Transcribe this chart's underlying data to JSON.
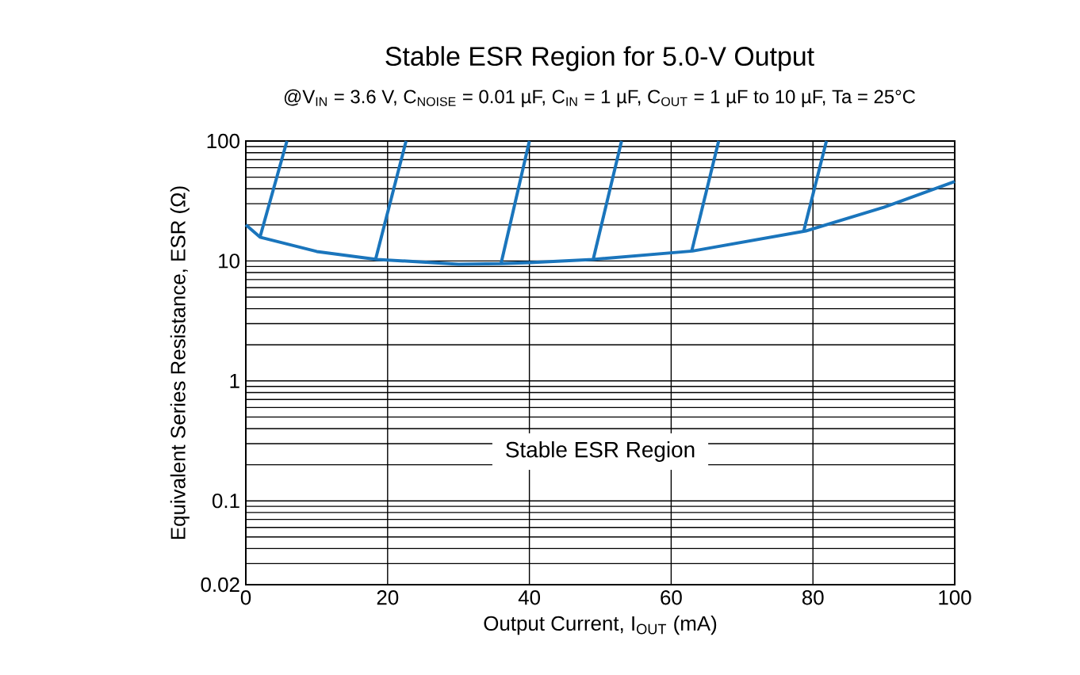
{
  "chart_data": {
    "type": "line",
    "title": "Stable ESR Region for 5.0-V Output",
    "subtitle": "@V$_{IN}$ = 3.6 V, C$_{NOISE}$ = 0.01 µF, C$_{IN}$ = 1 µF, C$_{OUT}$ = 1 µF to 10 µF, Ta  =  25°C",
    "xlabel": "Output Current, I$_{OUT}$ (mA)",
    "ylabel": "Equivalent Series Resistance, ESR (Ω)",
    "xlim": [
      0,
      100
    ],
    "ylim": [
      0.02,
      100
    ],
    "log": "y",
    "grid": true,
    "xticks": [
      0,
      20,
      40,
      60,
      80,
      100
    ],
    "yticks": [
      0.02,
      0.1,
      1,
      10,
      100
    ],
    "annotations": [
      "Stable ESR Region"
    ],
    "series": [
      {
        "color": "#1a75bc",
        "x": [
          0,
          2,
          10,
          18.5,
          30,
          36,
          40,
          49,
          63,
          79,
          90,
          100
        ],
        "values": [
          20,
          15.8,
          12,
          10.3,
          9.4,
          9.5,
          9.7,
          10.3,
          12.1,
          17.8,
          28,
          46
        ]
      },
      {
        "color": "#1a75bc",
        "x": [
          2,
          5.8
        ],
        "values": [
          15.8,
          100
        ]
      },
      {
        "color": "#1a75bc",
        "x": [
          18.3,
          22.6
        ],
        "values": [
          10.3,
          100
        ]
      },
      {
        "color": "#1a75bc",
        "x": [
          36,
          40
        ],
        "values": [
          9.5,
          100
        ]
      },
      {
        "color": "#1a75bc",
        "x": [
          49,
          53
        ],
        "values": [
          10.3,
          100
        ]
      },
      {
        "color": "#1a75bc",
        "x": [
          62.9,
          66.7
        ],
        "values": [
          12.1,
          100
        ]
      },
      {
        "color": "#1a75bc",
        "x": [
          78.7,
          81.9
        ],
        "values": [
          17.8,
          100
        ]
      }
    ]
  }
}
